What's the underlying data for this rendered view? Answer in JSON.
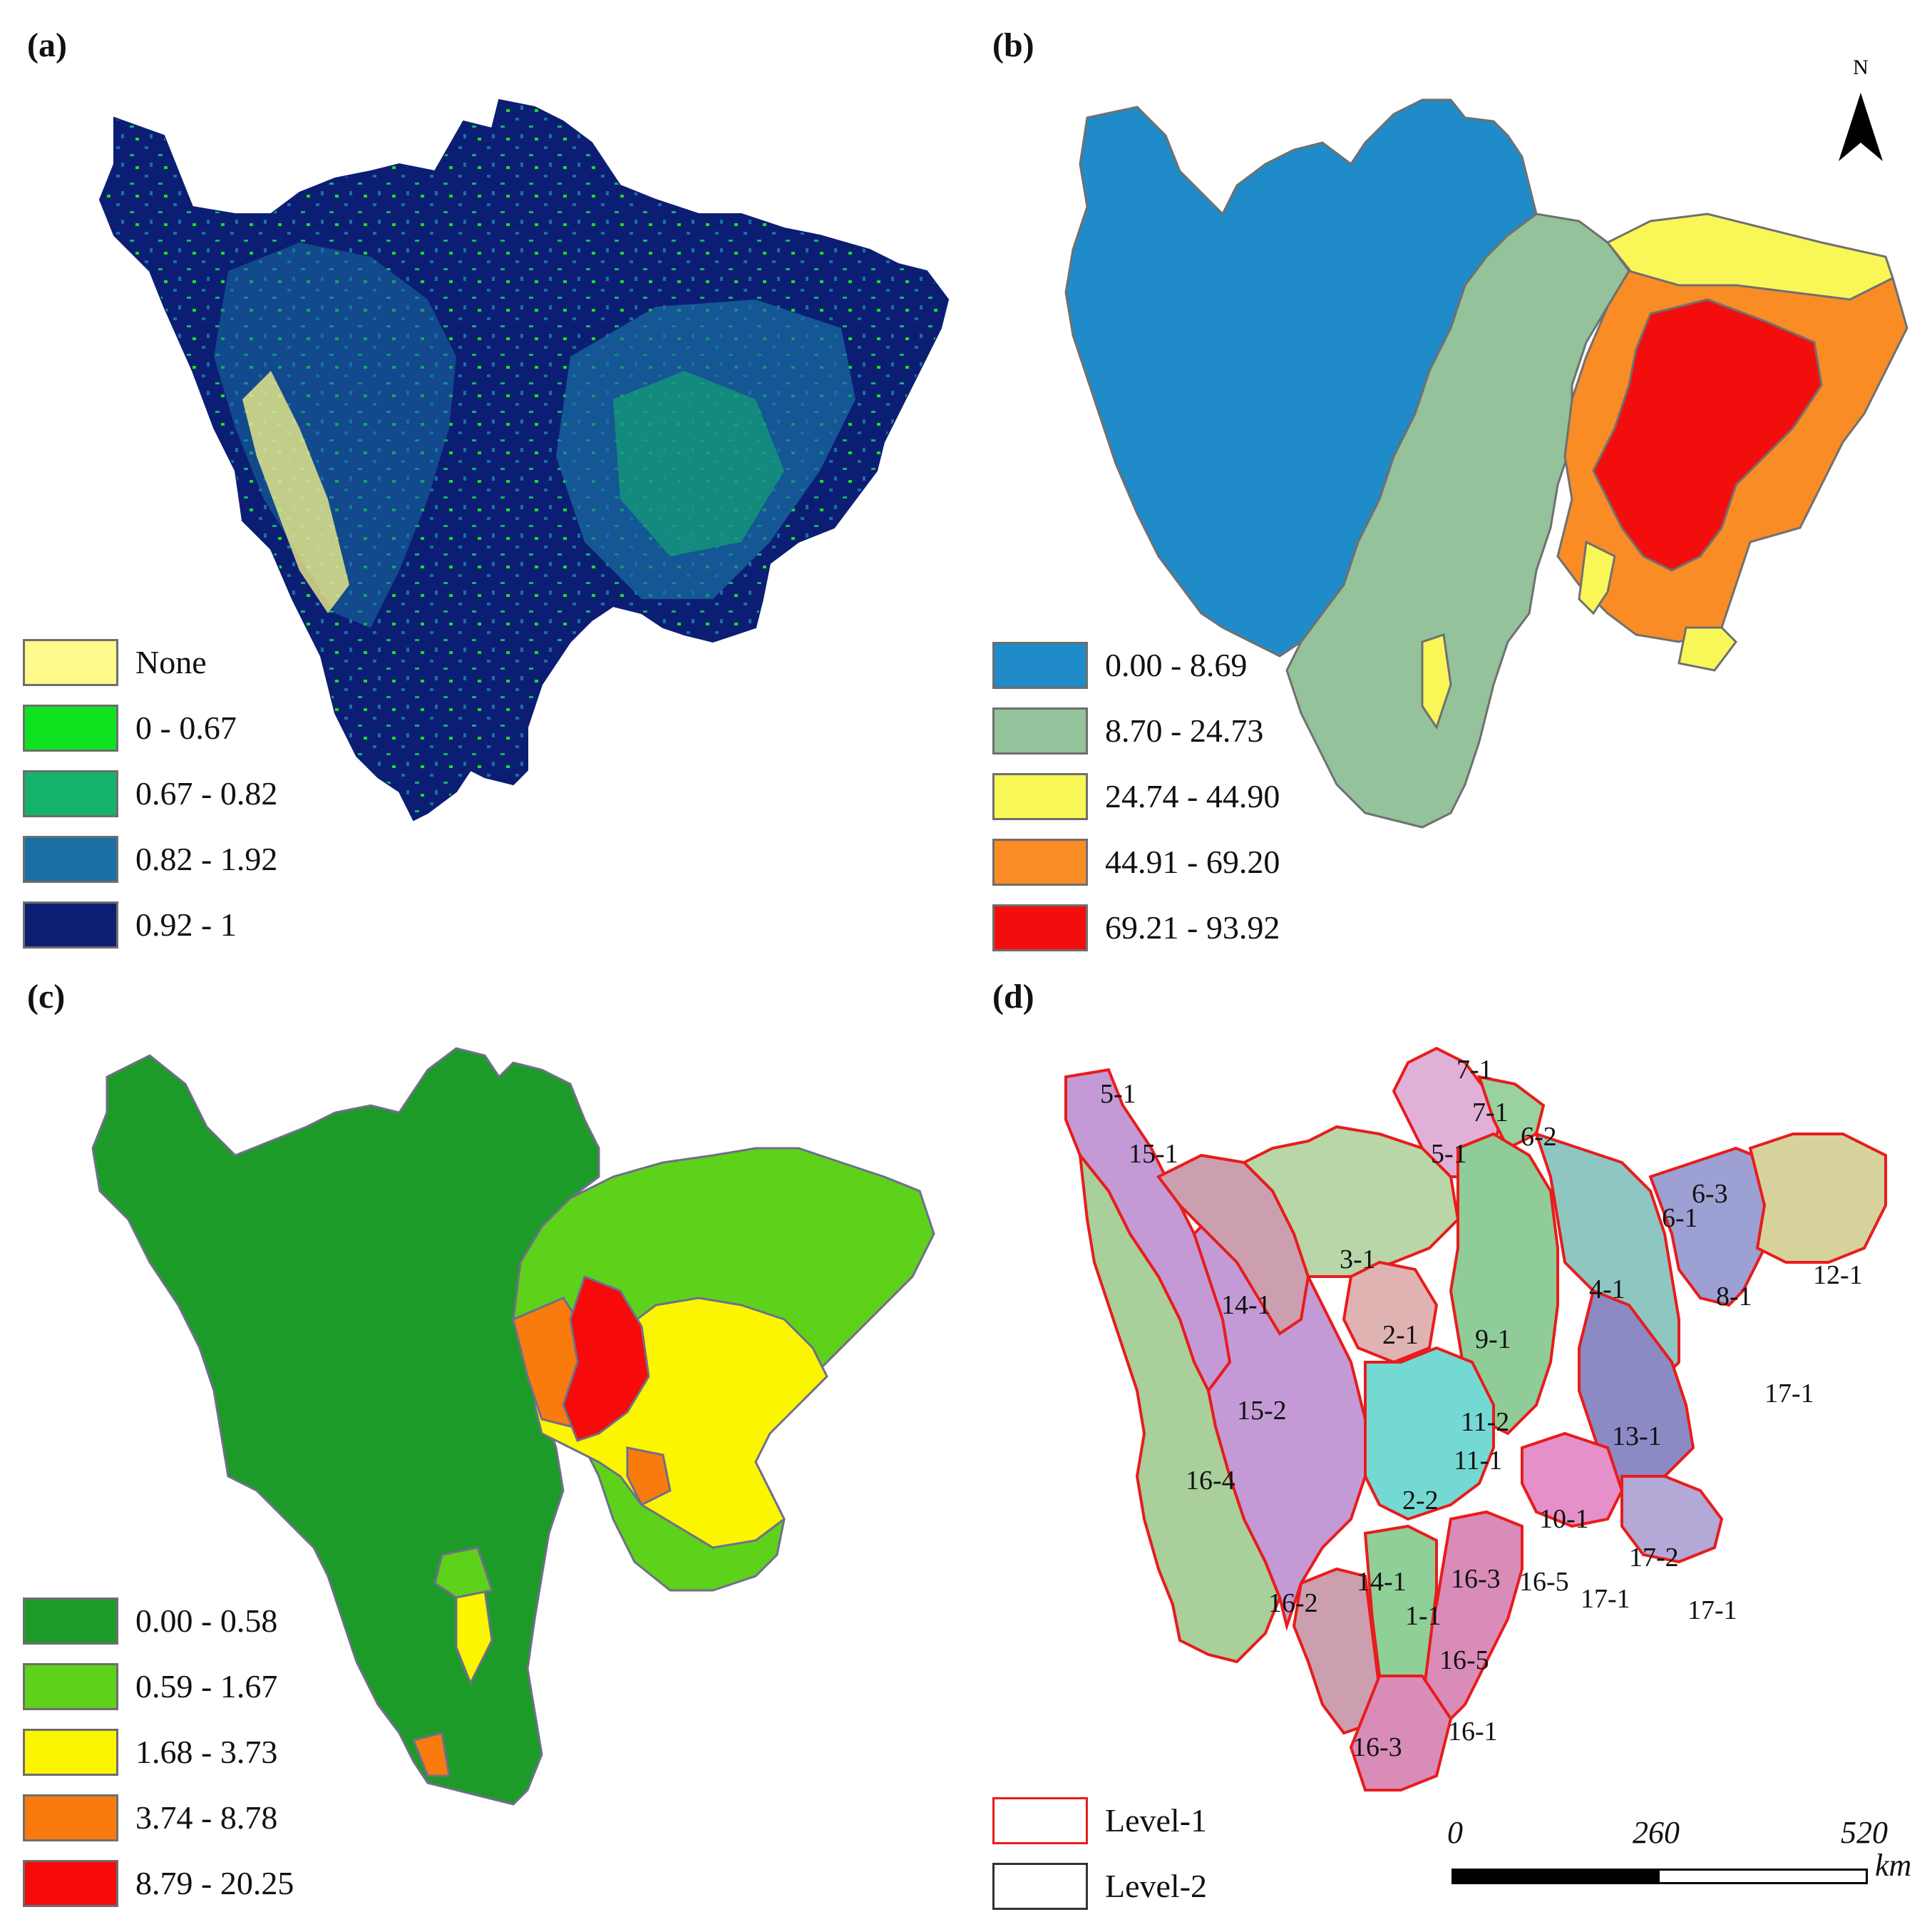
{
  "panels": {
    "a": {
      "label": "(a)",
      "legend": [
        {
          "text": "None",
          "color": "#fdf98a"
        },
        {
          "text": "0 - 0.67",
          "color": "#0fe31f"
        },
        {
          "text": "0.67 - 0.82",
          "color": "#14b26a"
        },
        {
          "text": "0.82 - 1.92",
          "color": "#186fa3"
        },
        {
          "text": "0.92 - 1",
          "color": "#0c1e74"
        }
      ]
    },
    "b": {
      "label": "(b)",
      "north": "N",
      "legend": [
        {
          "text": "0.00 - 8.69",
          "color": "#1f8bc8"
        },
        {
          "text": "8.70 - 24.73",
          "color": "#93c29b"
        },
        {
          "text": "24.74 - 44.90",
          "color": "#f9f657"
        },
        {
          "text": "44.91 - 69.20",
          "color": "#f98c25"
        },
        {
          "text": "69.21 - 93.92",
          "color": "#f40d0d"
        }
      ]
    },
    "c": {
      "label": "(c)",
      "legend": [
        {
          "text": "0.00 - 0.58",
          "color": "#1d9b28"
        },
        {
          "text": "0.59 - 1.67",
          "color": "#5ed11b"
        },
        {
          "text": "1.68 - 3.73",
          "color": "#fbf500"
        },
        {
          "text": "3.74 - 8.78",
          "color": "#f97b0e"
        },
        {
          "text": "8.79 - 20.25",
          "color": "#f60a0a"
        }
      ]
    },
    "d": {
      "label": "(d)",
      "legend": [
        {
          "text": "Level-1",
          "border": "#e81c1c"
        },
        {
          "text": "Level-2",
          "border": "#333333"
        }
      ],
      "zones": [
        "5-1",
        "7-1",
        "7-1",
        "15-1",
        "5-1",
        "6-2",
        "6-3",
        "6-1",
        "3-1",
        "14-1",
        "4-1",
        "8-1",
        "12-1",
        "9-1",
        "2-1",
        "17-1",
        "15-2",
        "11-2",
        "13-1",
        "11-1",
        "16-4",
        "2-2",
        "10-1",
        "17-2",
        "14-1",
        "16-3",
        "16-5",
        "17-1",
        "17-1",
        "16-2",
        "1-1",
        "16-5",
        "16-1",
        "16-3"
      ],
      "scale": {
        "ticks": [
          "0",
          "260",
          "520"
        ],
        "unit": "km"
      }
    }
  }
}
